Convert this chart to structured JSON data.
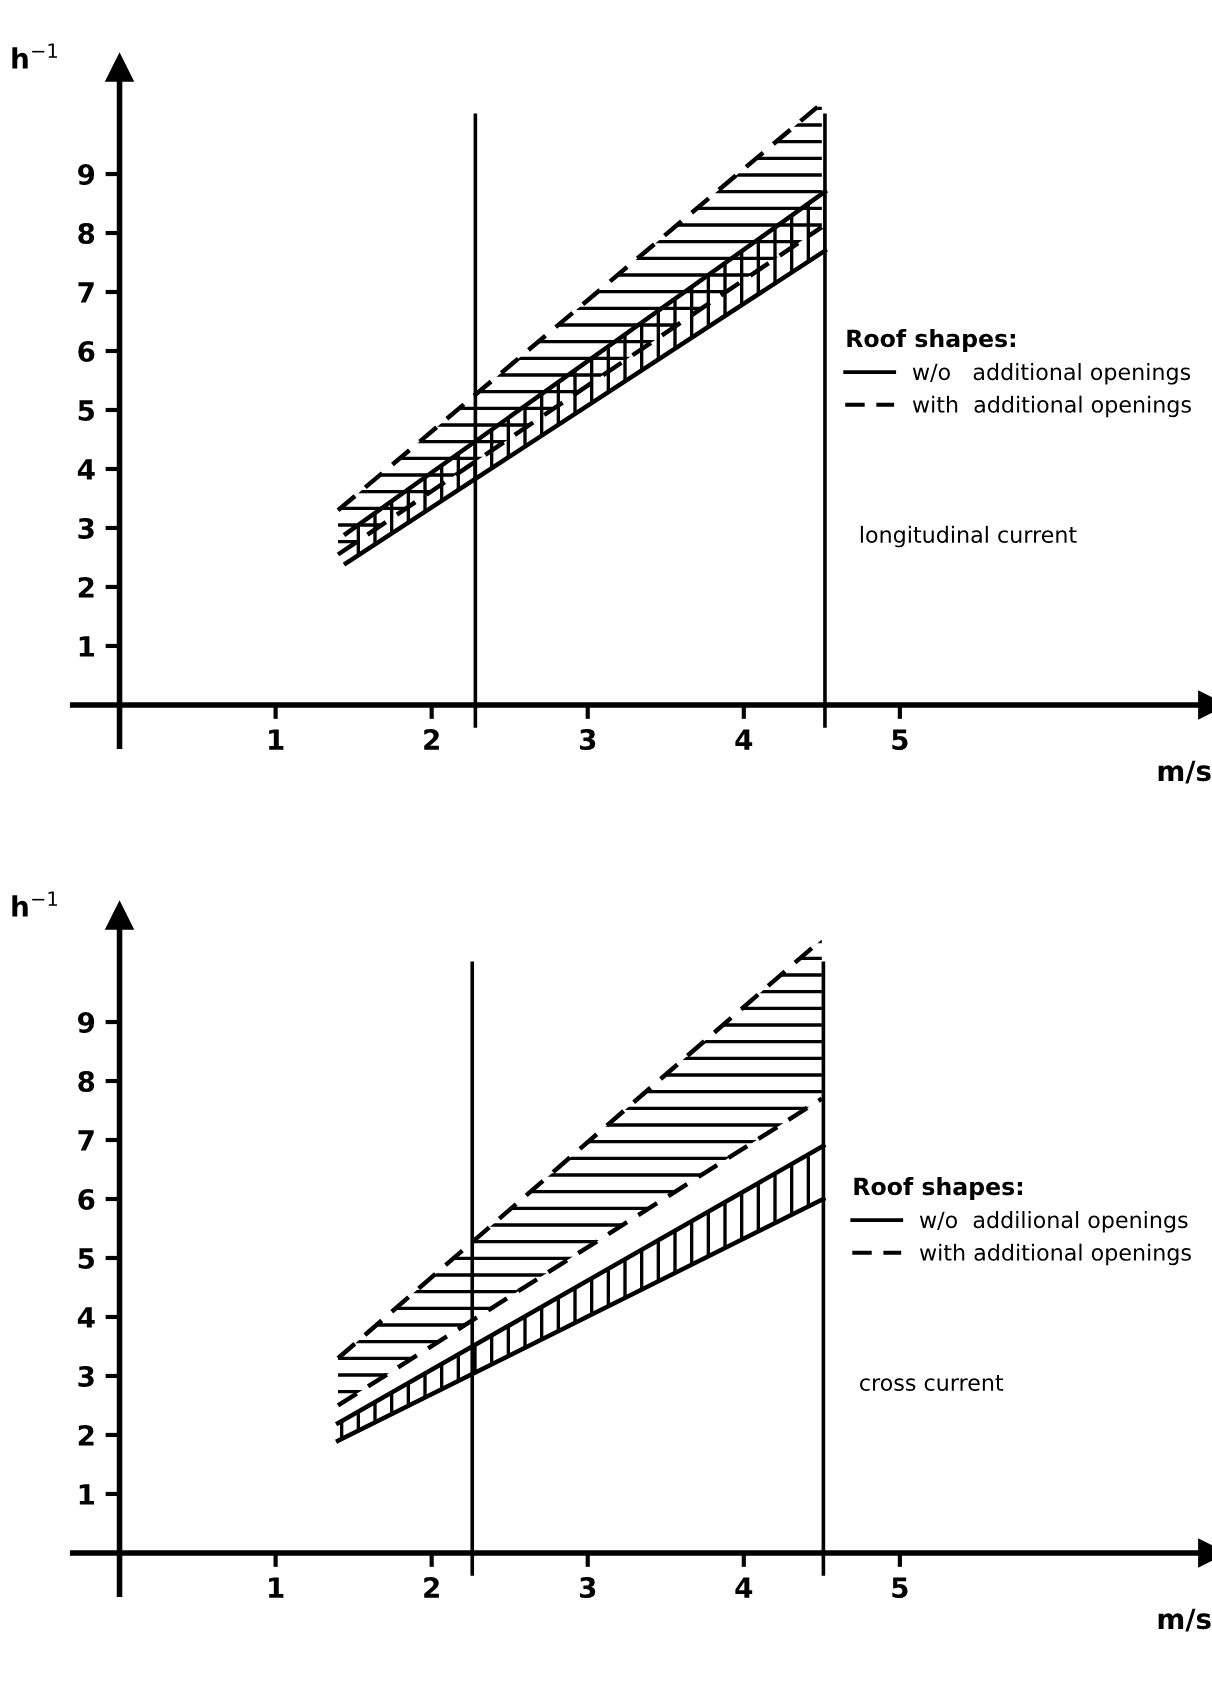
{
  "chart_data": [
    {
      "type": "line",
      "xlabel": "m/s",
      "ylabel": "h$^{−1}$",
      "legend_title": "Roof shapes:",
      "legend": "right",
      "xlim": [
        -0.3,
        7.0
      ],
      "ylim": [
        -0.7,
        10.8
      ],
      "xticks": [
        1,
        2,
        3,
        4,
        5
      ],
      "yticks": [
        1,
        2,
        3,
        4,
        5,
        6,
        7,
        8,
        9
      ],
      "grid": false,
      "series": [
        {
          "name": "w/o   additional openings",
          "color": "#000000",
          "line_style": "solid",
          "x": [
            1.45,
            4.52
          ],
          "values": [
            2.9,
            8.7
          ]
        },
        {
          "color": "#000000",
          "line_style": "solid",
          "x": [
            1.45,
            4.52
          ],
          "values": [
            2.4,
            7.7
          ]
        },
        {
          "name": "with  additional openings",
          "color": "#000000",
          "line_style": "dashed",
          "x": [
            1.4,
            4.5
          ],
          "values": [
            3.3,
            10.2
          ]
        },
        {
          "color": "#000000",
          "line_style": "dashed",
          "x": [
            1.4,
            4.5
          ],
          "values": [
            2.55,
            8.1
          ]
        }
      ],
      "ref_lines": [
        {
          "axis": "x",
          "value": 2.28,
          "color": "#000000"
        },
        {
          "axis": "x",
          "value": 4.52,
          "color": "#000000"
        }
      ],
      "annotations": [
        "longitudinal current"
      ]
    },
    {
      "type": "line",
      "xlabel": "m/s",
      "ylabel": "h$^{−1}$",
      "legend_title": "Roof shapes:",
      "legend": "right",
      "xlim": [
        -0.3,
        7.0
      ],
      "ylim": [
        -0.7,
        10.8
      ],
      "xticks": [
        1,
        2,
        3,
        4,
        5
      ],
      "yticks": [
        1,
        2,
        3,
        4,
        5,
        6,
        7,
        8,
        9
      ],
      "grid": false,
      "series": [
        {
          "name": "w/o  addilional openings",
          "color": "#000000",
          "line_style": "solid",
          "x": [
            1.4,
            4.51
          ],
          "values": [
            2.2,
            6.9
          ]
        },
        {
          "color": "#000000",
          "line_style": "solid",
          "x": [
            1.4,
            4.51
          ],
          "values": [
            1.9,
            6.0
          ]
        },
        {
          "name": "with additional openings",
          "color": "#000000",
          "line_style": "dashed",
          "x": [
            1.4,
            4.5
          ],
          "values": [
            3.3,
            10.4
          ]
        },
        {
          "color": "#000000",
          "line_style": "dashed",
          "x": [
            1.4,
            4.5
          ],
          "values": [
            2.5,
            7.7
          ]
        }
      ],
      "ref_lines": [
        {
          "axis": "x",
          "value": 2.26,
          "color": "#000000"
        },
        {
          "axis": "x",
          "value": 4.51,
          "color": "#000000"
        }
      ],
      "annotations": [
        "cross current"
      ]
    }
  ]
}
